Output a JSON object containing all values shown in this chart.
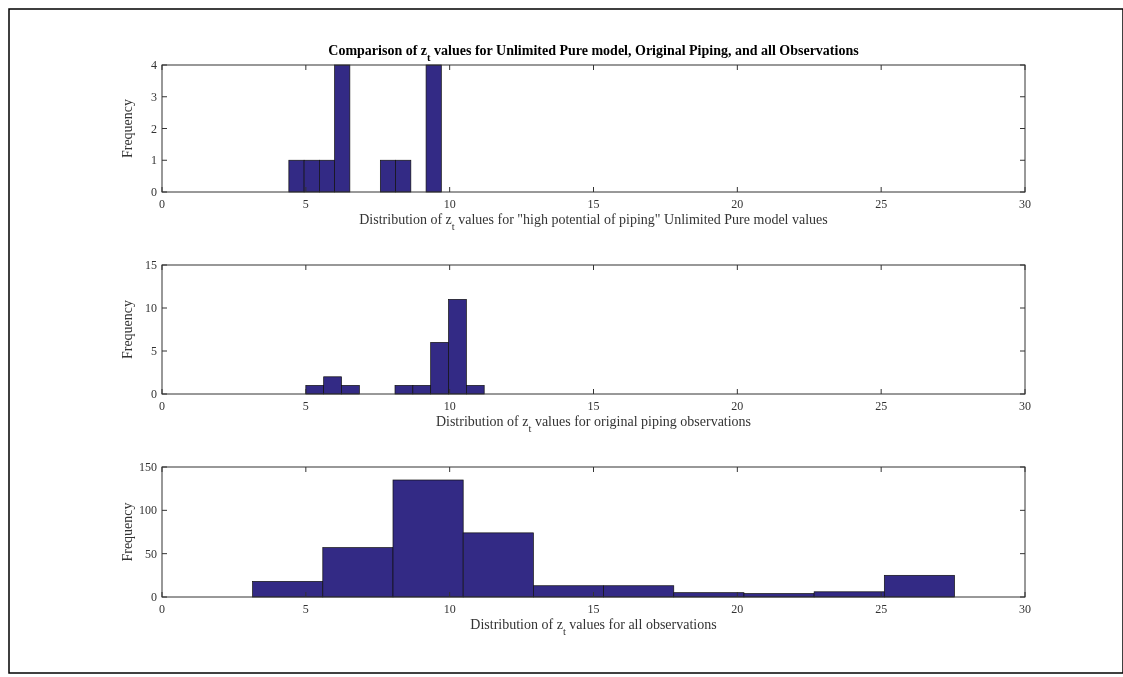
{
  "chart_data": [
    {
      "type": "histogram",
      "title": "Comparison of z$_{t}$ values for Unlimited Pure model, Original Piping, and all Observations",
      "xlabel": "Distribution of z$_{t}$ values for \"high potential of piping\" Unlimited Pure model values",
      "ylabel": "Frequency",
      "bins": [
        4.41,
        4.94,
        5.47,
        6.0,
        6.53,
        7.06,
        7.59,
        8.12,
        8.65,
        9.18,
        9.71
      ],
      "values": [
        1,
        1,
        1,
        4,
        0,
        0,
        1,
        1,
        0,
        4
      ],
      "color": "#332a85",
      "xlim": [
        0,
        30
      ],
      "xticks": [
        0,
        5,
        10,
        15,
        20,
        25,
        30
      ],
      "ylim": [
        0,
        4
      ],
      "yticks": [
        0,
        1,
        2,
        3,
        4
      ],
      "grid": false
    },
    {
      "type": "histogram",
      "xlabel": "Distribution of z$_{t}$ values for original piping observations",
      "ylabel": "Frequency",
      "bins": [
        5.0,
        5.62,
        6.24,
        6.86,
        7.48,
        8.1,
        8.72,
        9.34,
        9.96,
        10.58,
        11.2
      ],
      "values": [
        1,
        2,
        1,
        0,
        0,
        1,
        1,
        6,
        11,
        1
      ],
      "color": "#332a85",
      "xlim": [
        0,
        30
      ],
      "xticks": [
        0,
        5,
        10,
        15,
        20,
        25,
        30
      ],
      "ylim": [
        0,
        15
      ],
      "yticks": [
        0,
        5,
        10,
        15
      ],
      "grid": false
    },
    {
      "type": "histogram",
      "xlabel": "Distribution of z$_{t}$ values for all observations",
      "ylabel": "Frequency",
      "bins": [
        3.15,
        5.59,
        8.03,
        10.47,
        12.91,
        15.35,
        17.79,
        20.23,
        22.67,
        25.11,
        27.55
      ],
      "values": [
        18,
        57,
        135,
        74,
        13,
        13,
        5,
        4,
        6,
        25
      ],
      "color": "#332a85",
      "xlim": [
        0,
        30
      ],
      "xticks": [
        0,
        5,
        10,
        15,
        20,
        25,
        30
      ],
      "ylim": [
        0,
        150
      ],
      "yticks": [
        0,
        50,
        100,
        150
      ],
      "grid": false
    }
  ]
}
